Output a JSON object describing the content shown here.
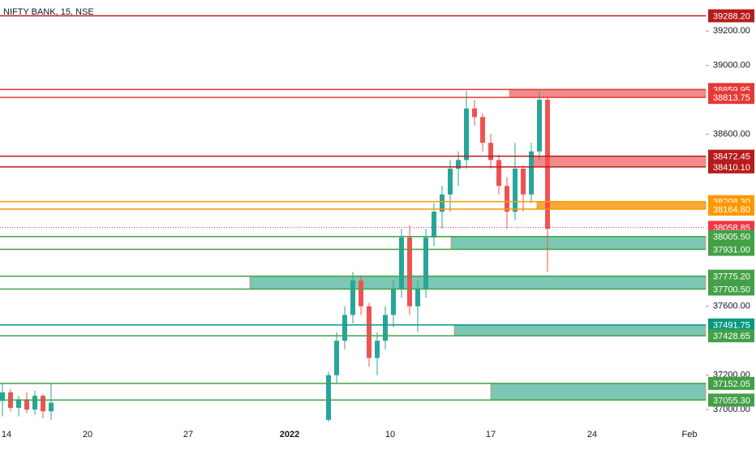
{
  "chart_data": {
    "type": "candlestick",
    "title": "NIFTY BANK, 15, NSE",
    "xlim": [
      0,
      87
    ],
    "ylim": [
      36930,
      39380
    ],
    "xticks": [
      {
        "value": 0.8,
        "label": "14"
      },
      {
        "value": 10.8,
        "label": "20"
      },
      {
        "value": 23.2,
        "label": "27"
      },
      {
        "value": 35.7,
        "label": "2022"
      },
      {
        "value": 48.1,
        "label": "10"
      },
      {
        "value": 60.5,
        "label": "17"
      },
      {
        "value": 73,
        "label": "24"
      },
      {
        "value": 85,
        "label": "Feb"
      }
    ],
    "yticks": [
      {
        "value": 37000,
        "label": "37000.00"
      },
      {
        "value": 37200,
        "label": "37200.00"
      },
      {
        "value": 37600,
        "label": "37600.00"
      },
      {
        "value": 38600,
        "label": "38600.00"
      },
      {
        "value": 39000,
        "label": "39000.00"
      },
      {
        "value": 39200,
        "label": "39200.00"
      }
    ],
    "up_color": "#26a69a",
    "down_color": "#ef5350",
    "x": [
      0.3,
      1.3,
      2.3,
      3.3,
      4.3,
      5.3,
      6.3,
      40.5,
      41.5,
      42.5,
      43.5,
      44.5,
      45.5,
      46.5,
      47.5,
      48.5,
      49.5,
      50.5,
      51.5,
      52.5,
      53.5,
      54.5,
      55.5,
      56.5,
      57.5,
      58.5,
      59.5,
      60.5,
      61.5,
      62.5,
      63.5,
      64.5,
      65.5,
      66.5,
      67.5
    ],
    "open": [
      37050,
      37100,
      37010,
      37060,
      37000,
      37080,
      36990,
      36940,
      37200,
      37400,
      37550,
      37750,
      37600,
      37300,
      37400,
      37550,
      37700,
      38000,
      37600,
      37700,
      38000,
      38150,
      38250,
      38400,
      38450,
      38750,
      38700,
      38550,
      38450,
      38300,
      38150,
      38400,
      38250,
      38500,
      38800
    ],
    "high": [
      37150,
      37120,
      37080,
      37100,
      37110,
      37090,
      37150,
      37220,
      37450,
      37600,
      37800,
      37780,
      37620,
      37450,
      37600,
      37750,
      38050,
      38070,
      37750,
      38050,
      38200,
      38300,
      38450,
      38500,
      38850,
      38800,
      38720,
      38600,
      38480,
      38350,
      38550,
      38420,
      38550,
      38850,
      38820
    ],
    "low": [
      36960,
      36990,
      36960,
      36980,
      36970,
      36950,
      36940,
      36930,
      37150,
      37350,
      37500,
      37550,
      37250,
      37200,
      37350,
      37480,
      37650,
      37550,
      37450,
      37650,
      37950,
      38050,
      38150,
      38300,
      38400,
      38650,
      38500,
      38400,
      38250,
      38050,
      38100,
      38150,
      38200,
      38450,
      37800
    ],
    "close": [
      37100,
      37010,
      37060,
      37000,
      37080,
      36990,
      37040,
      37200,
      37400,
      37550,
      37750,
      37600,
      37300,
      37400,
      37550,
      37700,
      38000,
      37600,
      37700,
      38000,
      38150,
      38250,
      38400,
      38450,
      38750,
      38700,
      38550,
      38450,
      38300,
      38150,
      38400,
      38250,
      38500,
      38800,
      38050
    ],
    "levels": [
      {
        "value": 39288.2,
        "label": "39288.20",
        "color": "#b71c1c"
      },
      {
        "value": 38859.95,
        "label": "38859.95",
        "color": "#e53935",
        "zone_start": 62.8,
        "zone_color": "#f28b8b"
      },
      {
        "value": 38813.75,
        "label": "38813.75",
        "color": "#e53935"
      },
      {
        "value": 38472.45,
        "label": "38472.45",
        "color": "#b71c1c",
        "zone_start": 65.5,
        "zone_color": "#f28b8b"
      },
      {
        "value": 38410.1,
        "label": "38410.10",
        "color": "#b71c1c"
      },
      {
        "value": 38208.3,
        "label": "38208.30",
        "color": "#ff9800",
        "zone_start": 66.2,
        "zone_color": "#f7a934"
      },
      {
        "value": 38164.8,
        "label": "38164.80",
        "color": "#ff9800"
      },
      {
        "value": 38058.85,
        "label": "38058.85",
        "color": "#f23645",
        "dotted": true
      },
      {
        "value": 38005.5,
        "label": "38005.50",
        "color": "#43a047",
        "zone_start": 55.6,
        "zone_color": "#7cc8b4"
      },
      {
        "value": 37931,
        "label": "37931.00",
        "color": "#43a047"
      },
      {
        "value": 37775.2,
        "label": "37775.20",
        "color": "#43a047",
        "zone_start": 30.8,
        "zone_color": "#7cc8b4"
      },
      {
        "value": 37700.5,
        "label": "37700.50",
        "color": "#43a047"
      },
      {
        "value": 37491.75,
        "label": "37491.75",
        "color": "#089981",
        "zone_start": 56,
        "zone_color": "#7cc8b4"
      },
      {
        "value": 37428.65,
        "label": "37428.65",
        "color": "#43a047"
      },
      {
        "value": 37152.05,
        "label": "37152.05",
        "color": "#43a047",
        "zone_start": 60.5,
        "zone_color": "#7cc8b4"
      },
      {
        "value": 37055.3,
        "label": "37055.30",
        "color": "#43a047"
      }
    ]
  }
}
